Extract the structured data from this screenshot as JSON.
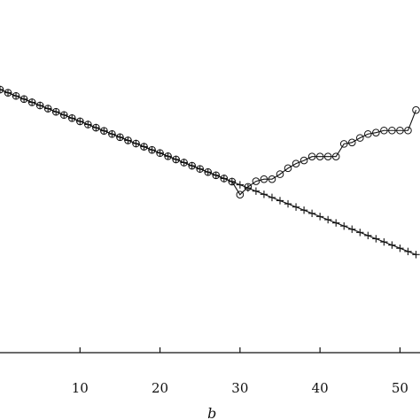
{
  "chart_data": {
    "type": "line",
    "title": "",
    "xlabel": "b",
    "ylabel": "",
    "xlim": [
      0,
      52.5
    ],
    "ylim": [
      0,
      1
    ],
    "grid": false,
    "legend": "none",
    "x_ticks": [
      10,
      20,
      30,
      40,
      50
    ],
    "x_tick_labels": [
      "10",
      "20",
      "30",
      "40",
      "50"
    ],
    "series": [
      {
        "marker": "plus",
        "color": "#111111",
        "points": [
          [
            0,
            0.746
          ],
          [
            1,
            0.737
          ],
          [
            2,
            0.728
          ],
          [
            3,
            0.719
          ],
          [
            4,
            0.71
          ],
          [
            5,
            0.701
          ],
          [
            6,
            0.692
          ],
          [
            7,
            0.683
          ],
          [
            8,
            0.674
          ],
          [
            9,
            0.665
          ],
          [
            10,
            0.656
          ],
          [
            11,
            0.647
          ],
          [
            12,
            0.638
          ],
          [
            13,
            0.629
          ],
          [
            14,
            0.62
          ],
          [
            15,
            0.611
          ],
          [
            16,
            0.602
          ],
          [
            17,
            0.593
          ],
          [
            18,
            0.584
          ],
          [
            19,
            0.575
          ],
          [
            20,
            0.566
          ],
          [
            21,
            0.557
          ],
          [
            22,
            0.548
          ],
          [
            23,
            0.539
          ],
          [
            24,
            0.53
          ],
          [
            25,
            0.521
          ],
          [
            26,
            0.512
          ],
          [
            27,
            0.503
          ],
          [
            28,
            0.494
          ],
          [
            29,
            0.485
          ],
          [
            30,
            0.476
          ],
          [
            31,
            0.467
          ],
          [
            32,
            0.458
          ],
          [
            33,
            0.449
          ],
          [
            34,
            0.44
          ],
          [
            35,
            0.431
          ],
          [
            36,
            0.422
          ],
          [
            37,
            0.413
          ],
          [
            38,
            0.404
          ],
          [
            39,
            0.395
          ],
          [
            40,
            0.386
          ],
          [
            41,
            0.377
          ],
          [
            42,
            0.368
          ],
          [
            43,
            0.359
          ],
          [
            44,
            0.35
          ],
          [
            45,
            0.341
          ],
          [
            46,
            0.332
          ],
          [
            47,
            0.323
          ],
          [
            48,
            0.314
          ],
          [
            49,
            0.305
          ],
          [
            50,
            0.296
          ],
          [
            51,
            0.287
          ],
          [
            52,
            0.278
          ]
        ]
      },
      {
        "marker": "circle",
        "color": "#111111",
        "points": [
          [
            0,
            0.746
          ],
          [
            1,
            0.737
          ],
          [
            2,
            0.728
          ],
          [
            3,
            0.719
          ],
          [
            4,
            0.71
          ],
          [
            5,
            0.701
          ],
          [
            6,
            0.692
          ],
          [
            7,
            0.683
          ],
          [
            8,
            0.674
          ],
          [
            9,
            0.665
          ],
          [
            10,
            0.656
          ],
          [
            11,
            0.647
          ],
          [
            12,
            0.638
          ],
          [
            13,
            0.629
          ],
          [
            14,
            0.62
          ],
          [
            15,
            0.611
          ],
          [
            16,
            0.602
          ],
          [
            17,
            0.593
          ],
          [
            18,
            0.584
          ],
          [
            19,
            0.575
          ],
          [
            20,
            0.566
          ],
          [
            21,
            0.557
          ],
          [
            22,
            0.548
          ],
          [
            23,
            0.539
          ],
          [
            24,
            0.53
          ],
          [
            25,
            0.521
          ],
          [
            26,
            0.512
          ],
          [
            27,
            0.503
          ],
          [
            28,
            0.494
          ],
          [
            29,
            0.485
          ],
          [
            30,
            0.448
          ],
          [
            31,
            0.47
          ],
          [
            32,
            0.486
          ],
          [
            33,
            0.492
          ],
          [
            34,
            0.492
          ],
          [
            35,
            0.506
          ],
          [
            36,
            0.523
          ],
          [
            37,
            0.536
          ],
          [
            38,
            0.545
          ],
          [
            39,
            0.556
          ],
          [
            40,
            0.556
          ],
          [
            41,
            0.556
          ],
          [
            42,
            0.556
          ],
          [
            43,
            0.592
          ],
          [
            44,
            0.596
          ],
          [
            45,
            0.609
          ],
          [
            46,
            0.62
          ],
          [
            47,
            0.624
          ],
          [
            48,
            0.63
          ],
          [
            49,
            0.63
          ],
          [
            50,
            0.63
          ],
          [
            51,
            0.63
          ],
          [
            52,
            0.688
          ]
        ]
      }
    ]
  }
}
